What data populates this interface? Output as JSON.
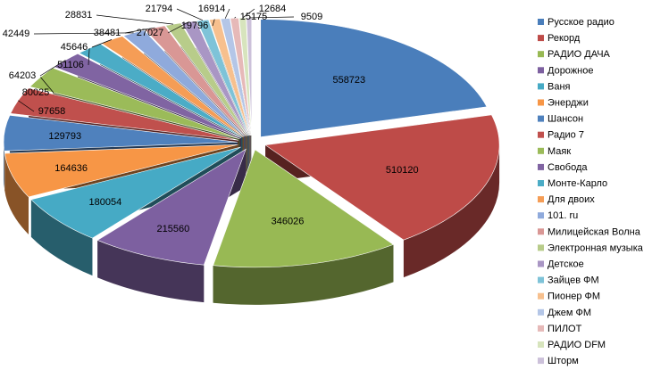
{
  "chart_data": {
    "type": "pie",
    "style": "exploded 3d pie",
    "legend_position": "right",
    "categories": [
      "Русское радио",
      "Рекорд",
      "РАДИО ДАЧА",
      "Дорожное",
      "Ваня",
      "Энерджи",
      "Шансон",
      "Радио 7",
      "Маяк",
      "Свобода",
      "Монте-Карло",
      "Для двоих",
      "101. ru",
      "Милицейская Волна",
      "Электронная музыка",
      "Детское",
      "Зайцев ФМ",
      "Пионер ФМ",
      "Джем ФМ",
      "ПИЛОТ",
      "РАДИО DFM",
      "Шторм"
    ],
    "values": [
      558723,
      510120,
      346026,
      215560,
      180054,
      164636,
      129793,
      97658,
      80025,
      64203,
      51106,
      45646,
      42449,
      38481,
      28831,
      27027,
      21794,
      19796,
      16914,
      15175,
      12684,
      9509
    ],
    "colors": [
      "#4a7ebb",
      "#be4b48",
      "#98b954",
      "#7d60a0",
      "#46aac5",
      "#f79646",
      "#4f81bd",
      "#c0504d",
      "#9bbb59",
      "#8064a2",
      "#4bacc6",
      "#f59d56",
      "#8faadc",
      "#d99795",
      "#b8cc8a",
      "#a996c4",
      "#7ec3d8",
      "#f7c08e",
      "#b4c6e7",
      "#e6b9b8",
      "#d7e4bd",
      "#ccc1da"
    ]
  }
}
